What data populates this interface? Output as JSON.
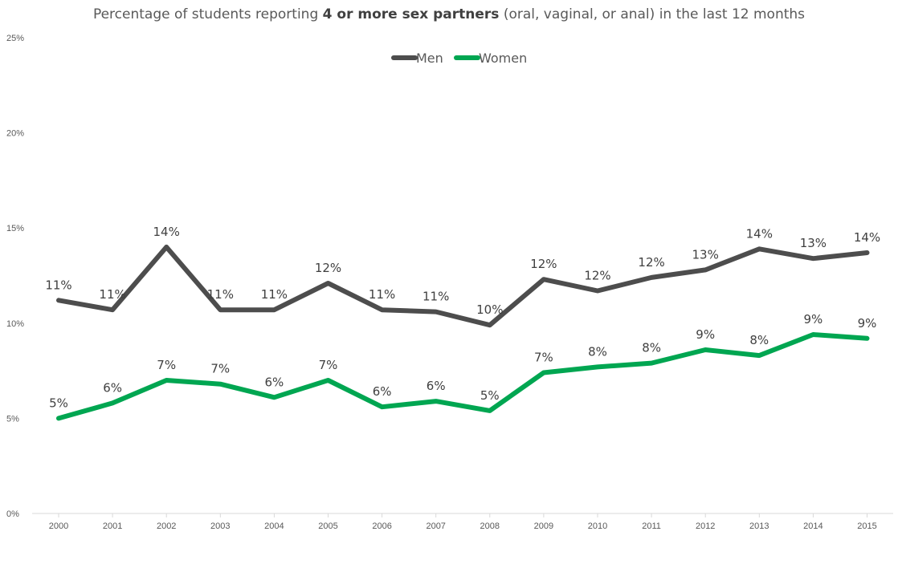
{
  "chart_data": {
    "type": "line",
    "title": {
      "prefix": "Percentage of students reporting ",
      "bold": "4 or more sex partners",
      "suffix": " (oral, vaginal, or anal) in the last 12 months"
    },
    "xlabel": "",
    "ylabel": "",
    "ylim": [
      0,
      25
    ],
    "y_ticks": [
      "0%",
      "5%",
      "10%",
      "15%",
      "20%",
      "25%"
    ],
    "y_tick_values": [
      0,
      5,
      10,
      15,
      20,
      25
    ],
    "grid": false,
    "legend_position": "top-center",
    "categories": [
      "2000",
      "2001",
      "2002",
      "2003",
      "2004",
      "2005",
      "2006",
      "2007",
      "2008",
      "2009",
      "2010",
      "2011",
      "2012",
      "2013",
      "2014",
      "2015"
    ],
    "series": [
      {
        "name": "Men",
        "color": "#4d4d4d",
        "values": [
          11.2,
          10.7,
          14.0,
          10.7,
          10.7,
          12.1,
          10.7,
          10.6,
          9.9,
          12.3,
          11.7,
          12.4,
          12.8,
          13.9,
          13.4,
          13.7
        ],
        "labels": [
          "11%",
          "11%",
          "14%",
          "11%",
          "11%",
          "12%",
          "11%",
          "11%",
          "10%",
          "12%",
          "12%",
          "12%",
          "13%",
          "14%",
          "13%",
          "14%"
        ]
      },
      {
        "name": "Women",
        "color": "#00a651",
        "values": [
          5.0,
          5.8,
          7.0,
          6.8,
          6.1,
          7.0,
          5.6,
          5.9,
          5.4,
          7.4,
          7.7,
          7.9,
          8.6,
          8.3,
          9.4,
          9.2
        ],
        "labels": [
          "5%",
          "6%",
          "7%",
          "7%",
          "6%",
          "7%",
          "6%",
          "6%",
          "5%",
          "7%",
          "8%",
          "8%",
          "9%",
          "8%",
          "9%",
          "9%"
        ]
      }
    ]
  }
}
